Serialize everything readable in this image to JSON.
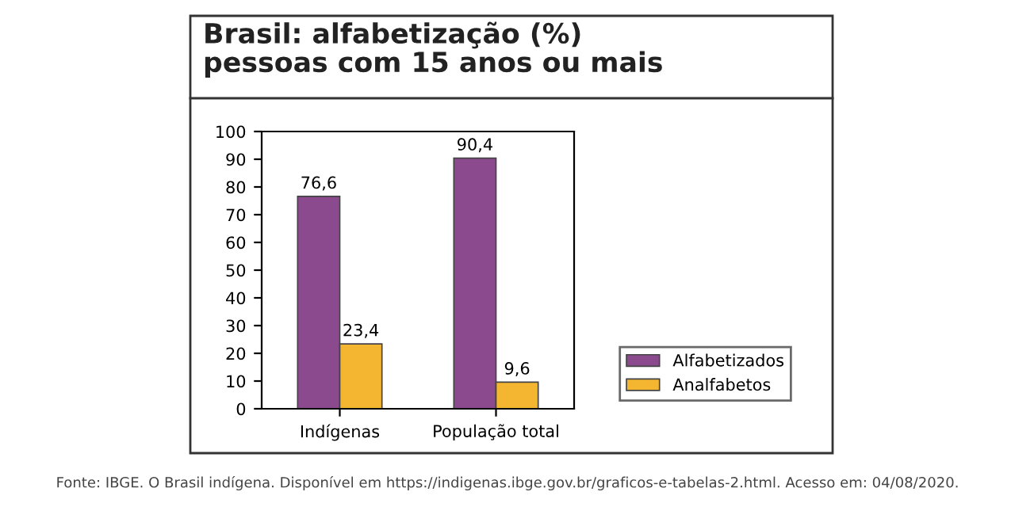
{
  "chart_data": {
    "type": "bar",
    "title": "Brasil: alfabetização (%)\npessoas com 15 anos ou mais",
    "categories": [
      "Indígenas",
      "População total"
    ],
    "series": [
      {
        "name": "Alfabetizados",
        "color": "#8c4a8e",
        "values": [
          76.6,
          90.4
        ],
        "value_labels": [
          "76,6",
          "90,4"
        ]
      },
      {
        "name": "Analfabetos",
        "color": "#f4b630",
        "values": [
          23.4,
          9.6
        ],
        "value_labels": [
          "23,4",
          "9,6"
        ]
      }
    ],
    "ylim": [
      0,
      100
    ],
    "yticks": [
      0,
      10,
      20,
      30,
      40,
      50,
      60,
      70,
      80,
      90,
      100
    ],
    "legend": "bottom right",
    "grid": false,
    "annotations": [
      "Fonte: IBGE. O Brasil indígena. Disponível em https://indigenas.ibge.gov.br/graficos-e-tabelas-2.html. Acesso em: 04/08/2020."
    ]
  }
}
